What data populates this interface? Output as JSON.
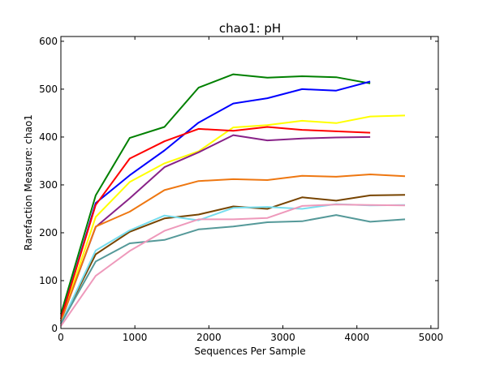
{
  "chart_data": {
    "type": "line",
    "title": "chao1: pH",
    "xlabel": "Sequences Per Sample",
    "ylabel": "Rarefaction Measure: chao1",
    "xlim": [
      0,
      5100
    ],
    "ylim": [
      0,
      610
    ],
    "xticks": [
      0,
      1000,
      2000,
      3000,
      4000,
      5000
    ],
    "yticks": [
      0,
      100,
      200,
      300,
      400,
      500,
      600
    ],
    "grid": false,
    "legend": "none",
    "series": [
      {
        "color": "#008000",
        "x": [
          0,
          470,
          930,
          1400,
          1860,
          2330,
          2790,
          3260,
          3720,
          4180
        ],
        "y": [
          30,
          278,
          398,
          421,
          503,
          531,
          524,
          527,
          525,
          512
        ]
      },
      {
        "color": "#0000ff",
        "x": [
          0,
          470,
          930,
          1400,
          1860,
          2330,
          2790,
          3260,
          3720,
          4180
        ],
        "y": [
          20,
          262,
          320,
          372,
          430,
          470,
          481,
          500,
          497,
          516
        ]
      },
      {
        "color": "#ffff00",
        "x": [
          0,
          470,
          930,
          1400,
          1860,
          2330,
          2790,
          3260,
          3720,
          4180,
          4650
        ],
        "y": [
          15,
          233,
          306,
          345,
          370,
          420,
          425,
          434,
          429,
          443,
          445
        ]
      },
      {
        "color": "#ff0000",
        "x": [
          0,
          470,
          930,
          1400,
          1860,
          2330,
          2790,
          3260,
          3720,
          4180
        ],
        "y": [
          20,
          258,
          355,
          391,
          417,
          413,
          421,
          415,
          412,
          409
        ]
      },
      {
        "color": "#882288",
        "x": [
          0,
          470,
          930,
          1400,
          1860,
          2330,
          2790,
          3260,
          3720,
          4180
        ],
        "y": [
          15,
          212,
          272,
          337,
          368,
          404,
          393,
          397,
          399,
          400
        ]
      },
      {
        "color": "#ee7711",
        "x": [
          0,
          470,
          930,
          1400,
          1860,
          2330,
          2790,
          3260,
          3720,
          4180,
          4650
        ],
        "y": [
          15,
          213,
          244,
          289,
          308,
          312,
          310,
          319,
          317,
          322,
          318
        ]
      },
      {
        "color": "#774400",
        "x": [
          0,
          470,
          930,
          1400,
          1860,
          2330,
          2790,
          3260,
          3720,
          4180,
          4650
        ],
        "y": [
          10,
          155,
          202,
          230,
          238,
          255,
          250,
          274,
          267,
          278,
          279
        ]
      },
      {
        "color": "#77ddee",
        "x": [
          0,
          470,
          930,
          1400,
          1860,
          2330,
          2790,
          3260,
          3720,
          4180,
          4650
        ],
        "y": [
          10,
          163,
          205,
          236,
          226,
          252,
          254,
          250,
          260,
          257,
          258
        ]
      },
      {
        "color": "#559999",
        "x": [
          0,
          470,
          930,
          1400,
          1860,
          2330,
          2790,
          3260,
          3720,
          4180,
          4650
        ],
        "y": [
          10,
          140,
          178,
          185,
          207,
          213,
          222,
          224,
          237,
          223,
          228
        ]
      },
      {
        "color": "#ee99bb",
        "x": [
          0,
          470,
          930,
          1400,
          1860,
          2330,
          2790,
          3260,
          3720,
          4180,
          4650
        ],
        "y": [
          5,
          110,
          162,
          204,
          228,
          228,
          231,
          256,
          259,
          258,
          257
        ]
      }
    ]
  }
}
